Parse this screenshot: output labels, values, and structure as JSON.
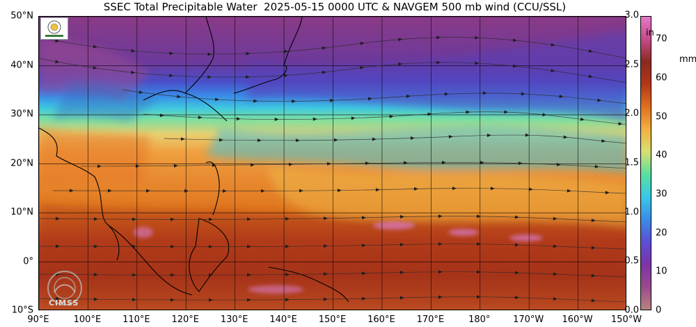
{
  "title": "SSEC Total Precipitable Water  2025-05-15 0000 UTC & NAVGEM 500 mb wind (CCU/SSL)",
  "map": {
    "lat_ticks": [
      "50°N",
      "40°N",
      "30°N",
      "20°N",
      "10°N",
      "0°",
      "10°S"
    ],
    "lat_values": [
      50,
      40,
      30,
      20,
      10,
      0,
      -10
    ],
    "lon_ticks": [
      "90°E",
      "100°E",
      "110°E",
      "120°E",
      "130°E",
      "140°E",
      "150°E",
      "160°E",
      "170°E",
      "180°",
      "170°W",
      "160°W",
      "150°W"
    ],
    "lon_values": [
      90,
      100,
      110,
      120,
      130,
      140,
      150,
      160,
      170,
      180,
      190,
      200,
      210
    ],
    "extent": {
      "lon_min": 90,
      "lon_max": 210,
      "lat_min": -10,
      "lat_max": 50
    },
    "variable": "Total Precipitable Water",
    "overlay": "NAVGEM 500 mb wind streamlines"
  },
  "colorbar": {
    "unit_in": "in",
    "unit_mm": "mm",
    "in_ticks": [
      "0.0",
      "0.5",
      "1.0",
      "1.5",
      "2.0",
      "2.5",
      "3.0"
    ],
    "in_values": [
      0.0,
      0.5,
      1.0,
      1.5,
      2.0,
      2.5,
      3.0
    ],
    "mm_ticks": [
      "0",
      "10",
      "20",
      "30",
      "40",
      "50",
      "60",
      "70"
    ],
    "mm_values": [
      0,
      10,
      20,
      30,
      40,
      50,
      60,
      70
    ],
    "mm_max": 76,
    "stops": [
      "#b88480",
      "#9a4a8c",
      "#7b33a8",
      "#5b4fd6",
      "#3a8ce8",
      "#38c8e8",
      "#56e0a0",
      "#d8e070",
      "#f2b040",
      "#e0701e",
      "#b3361a",
      "#8a2a1e",
      "#c84a8a",
      "#e27ac8"
    ]
  },
  "logos": {
    "cimss": "CIMSS"
  },
  "colors": {
    "dry_purple": "#7b2a78",
    "moist_orange": "#e0761e",
    "very_moist_red": "#a3321c",
    "mid_cyan": "#3ec8e0",
    "land_pink": "#d87ac8",
    "streamline": "#2a2a2a"
  }
}
